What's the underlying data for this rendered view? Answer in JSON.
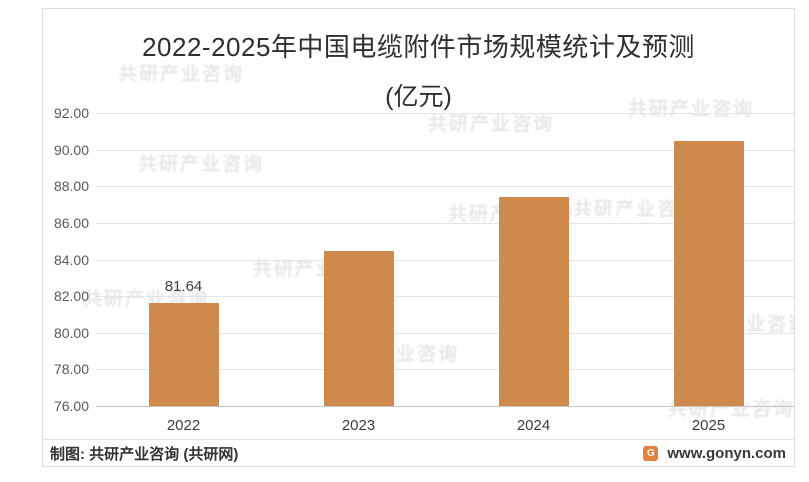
{
  "chart_data": {
    "type": "bar",
    "title": "2022-2025年中国电缆附件市场规模统计及预测",
    "subtitle": "(亿元)",
    "categories": [
      "2022",
      "2023",
      "2024",
      "2025"
    ],
    "values": [
      81.64,
      84.47,
      87.41,
      90.47
    ],
    "data_labels": [
      "81.64",
      "",
      "",
      ""
    ],
    "ylim": [
      76,
      92
    ],
    "ytick_step": 2,
    "ytick_labels": [
      "92.00",
      "90.00",
      "88.00",
      "86.00",
      "84.00",
      "82.00",
      "80.00",
      "78.00",
      "76.00"
    ],
    "grid": true,
    "legend": "none",
    "bar_color": "#D0894C",
    "xlabel": "",
    "ylabel": ""
  },
  "footer": {
    "source_label": "制图: 共研产业咨询 (共研网)",
    "website": "www.gonyn.com",
    "logo_letter": "G"
  },
  "watermark": {
    "text": "共研产业咨询"
  },
  "colors": {
    "bar": "#D0894C",
    "gridline": "#e4e4e4",
    "axis_line": "#c6c6c6",
    "title_text": "#2f2f2f",
    "tick_text": "#595959",
    "panel_border": "#dcdcdc",
    "logo_background": "#e5833c"
  }
}
